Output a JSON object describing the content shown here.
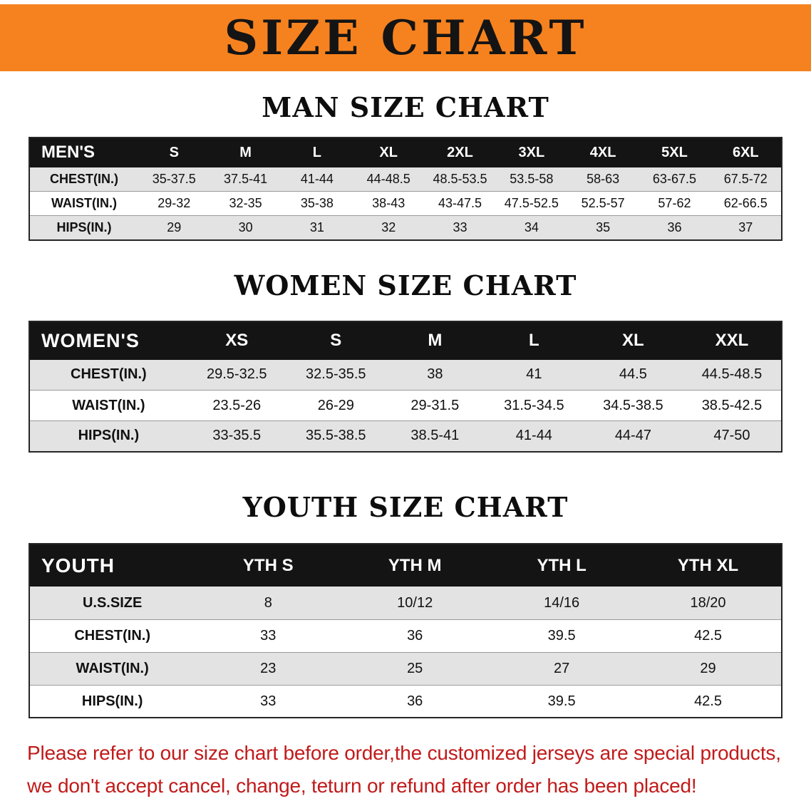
{
  "banner": {
    "title": "SIZE CHART",
    "bg_color": "#f6821f",
    "text_color": "#141414"
  },
  "sections": [
    {
      "heading": "MAN SIZE CHART",
      "table": {
        "name": "mens-size-table",
        "header_label": "MEN'S",
        "columns": [
          "S",
          "M",
          "L",
          "XL",
          "2XL",
          "3XL",
          "4XL",
          "5XL",
          "6XL"
        ],
        "rows": [
          {
            "label": "CHEST(IN.)",
            "values": [
              "35-37.5",
              "37.5-41",
              "41-44",
              "44-48.5",
              "48.5-53.5",
              "53.5-58",
              "58-63",
              "63-67.5",
              "67.5-72"
            ]
          },
          {
            "label": "WAIST(IN.)",
            "values": [
              "29-32",
              "32-35",
              "35-38",
              "38-43",
              "43-47.5",
              "47.5-52.5",
              "52.5-57",
              "57-62",
              "62-66.5"
            ]
          },
          {
            "label": "HIPS(IN.)",
            "values": [
              "29",
              "30",
              "31",
              "32",
              "33",
              "34",
              "35",
              "36",
              "37"
            ]
          }
        ]
      }
    },
    {
      "heading": "WOMEN SIZE CHART",
      "table": {
        "name": "womens-size-table",
        "header_label": "WOMEN'S",
        "columns": [
          "XS",
          "S",
          "M",
          "L",
          "XL",
          "XXL"
        ],
        "rows": [
          {
            "label": "CHEST(IN.)",
            "values": [
              "29.5-32.5",
              "32.5-35.5",
              "38",
              "41",
              "44.5",
              "44.5-48.5"
            ]
          },
          {
            "label": "WAIST(IN.)",
            "values": [
              "23.5-26",
              "26-29",
              "29-31.5",
              "31.5-34.5",
              "34.5-38.5",
              "38.5-42.5"
            ]
          },
          {
            "label": "HIPS(IN.)",
            "values": [
              "33-35.5",
              "35.5-38.5",
              "38.5-41",
              "41-44",
              "44-47",
              "47-50"
            ]
          }
        ]
      }
    },
    {
      "heading": "YOUTH SIZE CHART",
      "table": {
        "name": "youth-size-table",
        "header_label": "YOUTH",
        "columns": [
          "YTH S",
          "YTH M",
          "YTH L",
          "YTH XL"
        ],
        "rows": [
          {
            "label": "U.S.SIZE",
            "values": [
              "8",
              "10/12",
              "14/16",
              "18/20"
            ]
          },
          {
            "label": "CHEST(IN.)",
            "values": [
              "33",
              "36",
              "39.5",
              "42.5"
            ]
          },
          {
            "label": "WAIST(IN.)",
            "values": [
              "23",
              "25",
              "27",
              "29"
            ]
          },
          {
            "label": "HIPS(IN.)",
            "values": [
              "33",
              "36",
              "39.5",
              "42.5"
            ]
          }
        ]
      }
    }
  ],
  "footer": {
    "lines": [
      "Please refer to our size chart before order,the customized jerseys are special products,",
      "we don't accept cancel, change, teturn or refund after order has been placed!"
    ],
    "text_color": "#c11a1a"
  }
}
